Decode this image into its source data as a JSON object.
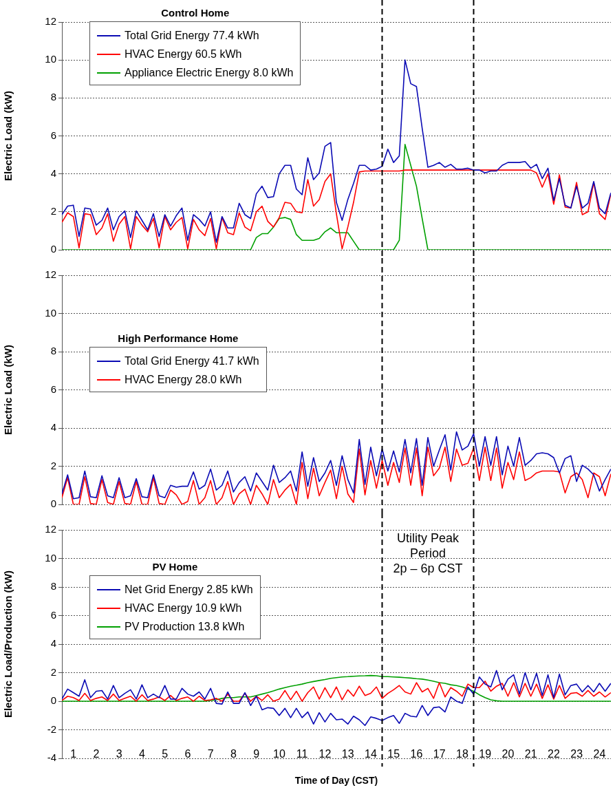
{
  "chart_data": [
    {
      "type": "line",
      "title": "Control Home",
      "ylabel": "Electric Load (kW)",
      "xlim": [
        0.5,
        24.5
      ],
      "xticks": [
        1,
        2,
        3,
        4,
        5,
        6,
        7,
        8,
        9,
        10,
        11,
        12,
        13,
        14,
        15,
        16,
        17,
        18,
        19,
        20,
        21,
        22,
        23,
        24
      ],
      "ylim": [
        0,
        12
      ],
      "yticks": [
        0,
        2,
        4,
        6,
        8,
        10,
        12
      ],
      "grid": "y",
      "legend": "top left",
      "tick_labels": "y",
      "marker": "none",
      "line_style": "solid",
      "x": [
        0.5,
        0.75,
        1,
        1.25,
        1.5,
        1.75,
        2,
        2.25,
        2.5,
        2.75,
        3,
        3.25,
        3.5,
        3.75,
        4,
        4.25,
        4.5,
        4.75,
        5,
        5.25,
        5.5,
        5.75,
        6,
        6.25,
        6.5,
        6.75,
        7,
        7.25,
        7.5,
        7.75,
        8,
        8.25,
        8.5,
        8.75,
        9,
        9.25,
        9.5,
        9.75,
        10,
        10.25,
        10.5,
        10.75,
        11,
        11.25,
        11.5,
        11.75,
        12,
        12.25,
        12.5,
        12.75,
        13,
        13.25,
        13.5,
        13.75,
        14,
        14.25,
        14.5,
        14.75,
        15,
        15.25,
        15.5,
        15.75,
        16,
        16.25,
        16.5,
        16.75,
        17,
        17.25,
        17.5,
        17.75,
        18,
        18.25,
        18.5,
        18.75,
        19,
        19.25,
        19.5,
        19.75,
        20,
        20.25,
        20.5,
        20.75,
        21,
        21.25,
        21.5,
        21.75,
        22,
        22.25,
        22.5,
        22.75,
        23,
        23.25,
        23.5,
        23.75,
        24,
        24.25,
        24.5
      ],
      "series": [
        {
          "name": "Total Grid Energy 77.4 kWh",
          "color": "#0a0ab4",
          "values": [
            1.85,
            2.3,
            2.35,
            0.7,
            2.2,
            2.15,
            1.3,
            1.55,
            2.2,
            1.05,
            1.75,
            2.05,
            0.65,
            2.05,
            1.55,
            1.05,
            1.9,
            0.7,
            1.85,
            1.25,
            1.8,
            2.2,
            0.5,
            1.85,
            1.6,
            1.25,
            2.0,
            0.4,
            1.75,
            1.15,
            1.15,
            2.45,
            1.85,
            1.65,
            2.95,
            3.35,
            2.75,
            2.8,
            4.0,
            4.45,
            4.45,
            3.2,
            2.9,
            4.85,
            3.7,
            4.05,
            5.45,
            5.65,
            2.5,
            1.55,
            2.65,
            3.5,
            4.45,
            4.45,
            4.2,
            4.25,
            4.4,
            5.3,
            4.6,
            4.95,
            10.0,
            8.75,
            8.6,
            6.4,
            4.35,
            4.45,
            4.6,
            4.35,
            4.5,
            4.25,
            4.25,
            4.3,
            4.2,
            4.2,
            4.05,
            4.15,
            4.15,
            4.45,
            4.6,
            4.6,
            4.6,
            4.65,
            4.3,
            4.5,
            3.75,
            4.3,
            2.6,
            3.75,
            2.35,
            2.2,
            3.35,
            2.2,
            2.45,
            3.6,
            2.2,
            1.9,
            3.0
          ]
        },
        {
          "name": "HVAC Energy 60.5 kWh",
          "color": "#ff0000",
          "values": [
            1.45,
            1.95,
            1.75,
            0.1,
            1.9,
            1.85,
            0.8,
            1.15,
            1.9,
            0.45,
            1.35,
            1.75,
            0.05,
            1.75,
            1.3,
            0.95,
            1.65,
            0.1,
            1.75,
            1.05,
            1.45,
            1.7,
            0.05,
            1.6,
            1.05,
            0.75,
            1.65,
            0.05,
            1.7,
            0.9,
            0.8,
            1.95,
            1.2,
            1.0,
            2.0,
            2.3,
            1.5,
            1.2,
            1.7,
            2.5,
            2.45,
            2.0,
            1.95,
            3.7,
            2.3,
            2.65,
            3.6,
            4.0,
            1.9,
            0.05,
            1.2,
            2.5,
            4.1,
            4.15,
            4.15,
            4.15,
            4.15,
            4.15,
            4.15,
            4.15,
            4.2,
            4.2,
            4.2,
            4.2,
            4.2,
            4.2,
            4.2,
            4.2,
            4.2,
            4.2,
            4.2,
            4.2,
            4.2,
            4.2,
            4.2,
            4.2,
            4.2,
            4.2,
            4.2,
            4.2,
            4.2,
            4.2,
            4.2,
            4.05,
            3.3,
            4.0,
            2.4,
            3.95,
            2.25,
            2.2,
            3.55,
            1.85,
            2.0,
            3.55,
            1.9,
            1.6,
            2.95
          ]
        },
        {
          "name": "Appliance Electric Energy 8.0 kWh",
          "color": "#00a000",
          "values": [
            0,
            0,
            0,
            0,
            0,
            0,
            0,
            0,
            0,
            0,
            0,
            0,
            0,
            0,
            0,
            0,
            0,
            0,
            0,
            0,
            0,
            0,
            0,
            0,
            0,
            0,
            0,
            0,
            0,
            0,
            0,
            0,
            0,
            0,
            0.65,
            0.85,
            0.85,
            1.2,
            1.65,
            1.7,
            1.6,
            0.8,
            0.5,
            0.5,
            0.5,
            0.6,
            0.95,
            1.15,
            0.9,
            0.9,
            0.9,
            0.45,
            0,
            0,
            0,
            0,
            0,
            0,
            0,
            0.5,
            5.55,
            4.45,
            3.35,
            1.65,
            0,
            0,
            0,
            0,
            0,
            0,
            0,
            0,
            0,
            0,
            0,
            0,
            0,
            0,
            0,
            0,
            0,
            0,
            0,
            0,
            0,
            0,
            0,
            0,
            0,
            0,
            0,
            0,
            0,
            0,
            0,
            0,
            0
          ]
        }
      ],
      "ref_lines": [
        {
          "axis": "x",
          "value": 14.5,
          "color": "#000000",
          "line_style": "dashed"
        },
        {
          "axis": "x",
          "value": 18.5,
          "color": "#000000",
          "line_style": "dashed"
        }
      ]
    },
    {
      "type": "line",
      "title": "High Performance Home",
      "ylabel": "Electric Load (kW)",
      "xlim": [
        0.5,
        24.5
      ],
      "xticks": [
        1,
        2,
        3,
        4,
        5,
        6,
        7,
        8,
        9,
        10,
        11,
        12,
        13,
        14,
        15,
        16,
        17,
        18,
        19,
        20,
        21,
        22,
        23,
        24
      ],
      "ylim": [
        0,
        12
      ],
      "yticks": [
        0,
        2,
        4,
        6,
        8,
        10,
        12
      ],
      "grid": "y",
      "legend": "top left",
      "tick_labels": "y",
      "marker": "none",
      "line_style": "solid",
      "x": [
        0.5,
        0.75,
        1,
        1.25,
        1.5,
        1.75,
        2,
        2.25,
        2.5,
        2.75,
        3,
        3.25,
        3.5,
        3.75,
        4,
        4.25,
        4.5,
        4.75,
        5,
        5.25,
        5.5,
        5.75,
        6,
        6.25,
        6.5,
        6.75,
        7,
        7.25,
        7.5,
        7.75,
        8,
        8.25,
        8.5,
        8.75,
        9,
        9.25,
        9.5,
        9.75,
        10,
        10.25,
        10.5,
        10.75,
        11,
        11.25,
        11.5,
        11.75,
        12,
        12.25,
        12.5,
        12.75,
        13,
        13.25,
        13.5,
        13.75,
        14,
        14.25,
        14.5,
        14.75,
        15,
        15.25,
        15.5,
        15.75,
        16,
        16.25,
        16.5,
        16.75,
        17,
        17.25,
        17.5,
        17.75,
        18,
        18.25,
        18.5,
        18.75,
        19,
        19.25,
        19.5,
        19.75,
        20,
        20.25,
        20.5,
        20.75,
        21,
        21.25,
        21.5,
        21.75,
        22,
        22.25,
        22.5,
        22.75,
        23,
        23.25,
        23.5,
        23.75,
        24,
        24.25,
        24.5
      ],
      "series": [
        {
          "name": "Total Grid Energy 41.7 kWh",
          "color": "#0a0ab4",
          "values": [
            0.55,
            1.55,
            0.3,
            0.35,
            1.75,
            0.4,
            0.35,
            1.5,
            0.45,
            0.35,
            1.4,
            0.35,
            0.45,
            1.35,
            0.4,
            0.35,
            1.55,
            0.45,
            0.35,
            1.0,
            0.9,
            0.95,
            0.95,
            1.7,
            0.8,
            1.0,
            1.85,
            0.75,
            1.0,
            1.75,
            0.65,
            1.15,
            1.45,
            0.7,
            1.65,
            1.2,
            0.75,
            2.05,
            1.15,
            1.4,
            1.75,
            0.7,
            2.75,
            0.95,
            2.45,
            1.2,
            1.65,
            2.3,
            1.0,
            2.55,
            1.3,
            0.6,
            3.4,
            1.05,
            3.0,
            1.5,
            2.9,
            1.75,
            2.8,
            1.7,
            3.4,
            1.65,
            3.45,
            1.0,
            3.5,
            2.0,
            2.85,
            3.65,
            1.8,
            3.8,
            2.85,
            3.05,
            3.7,
            2.0,
            3.55,
            2.05,
            3.55,
            1.55,
            3.05,
            2.0,
            3.5,
            2.05,
            2.3,
            2.65,
            2.7,
            2.65,
            2.45,
            1.65,
            2.4,
            2.55,
            1.2,
            2.05,
            1.85,
            1.55,
            0.7,
            1.3,
            1.85
          ]
        },
        {
          "name": "HVAC Energy 28.0 kWh",
          "color": "#ff0000",
          "values": [
            0.35,
            1.4,
            0.0,
            0.0,
            1.45,
            0.05,
            0.0,
            1.3,
            0.1,
            0.0,
            1.2,
            0.05,
            0.0,
            1.2,
            0.0,
            0.0,
            1.4,
            0.05,
            0.0,
            0.75,
            0.5,
            0.0,
            0.15,
            1.25,
            0.0,
            0.35,
            1.25,
            0.0,
            0.35,
            1.2,
            0.0,
            0.55,
            0.8,
            0.0,
            1.0,
            0.55,
            0.0,
            1.3,
            0.35,
            0.75,
            1.05,
            0.0,
            2.2,
            0.3,
            1.9,
            0.45,
            1.15,
            1.8,
            0.3,
            2.0,
            0.55,
            0.1,
            2.9,
            0.5,
            2.3,
            0.85,
            2.3,
            1.0,
            2.2,
            1.15,
            2.95,
            1.0,
            2.95,
            0.45,
            3.0,
            1.5,
            1.9,
            3.0,
            1.2,
            2.9,
            2.05,
            2.15,
            2.95,
            1.25,
            3.0,
            1.25,
            2.95,
            0.85,
            2.2,
            1.3,
            2.75,
            1.25,
            1.4,
            1.65,
            1.75,
            1.75,
            1.75,
            1.7,
            0.6,
            1.45,
            1.65,
            1.3,
            0.35,
            1.65,
            1.45,
            0.45,
            1.6
          ]
        }
      ],
      "ref_lines": [
        {
          "axis": "x",
          "value": 14.5,
          "color": "#000000",
          "line_style": "dashed"
        },
        {
          "axis": "x",
          "value": 18.5,
          "color": "#000000",
          "line_style": "dashed"
        }
      ]
    },
    {
      "type": "line",
      "title": "PV Home",
      "ylabel": "Electric Load/Production (kW)",
      "xlabel": "Time of Day (CST)",
      "xlim": [
        0.5,
        24.5
      ],
      "xticks": [
        1,
        2,
        3,
        4,
        5,
        6,
        7,
        8,
        9,
        10,
        11,
        12,
        13,
        14,
        15,
        16,
        17,
        18,
        19,
        20,
        21,
        22,
        23,
        24
      ],
      "ylim": [
        -4,
        12
      ],
      "yticks": [
        -4,
        -2,
        0,
        2,
        4,
        6,
        8,
        10,
        12
      ],
      "grid": "y",
      "legend": "top left",
      "marker": "none",
      "line_style": "solid",
      "x": [
        0.5,
        0.75,
        1,
        1.25,
        1.5,
        1.75,
        2,
        2.25,
        2.5,
        2.75,
        3,
        3.25,
        3.5,
        3.75,
        4,
        4.25,
        4.5,
        4.75,
        5,
        5.25,
        5.5,
        5.75,
        6,
        6.25,
        6.5,
        6.75,
        7,
        7.25,
        7.5,
        7.75,
        8,
        8.25,
        8.5,
        8.75,
        9,
        9.25,
        9.5,
        9.75,
        10,
        10.25,
        10.5,
        10.75,
        11,
        11.25,
        11.5,
        11.75,
        12,
        12.25,
        12.5,
        12.75,
        13,
        13.25,
        13.5,
        13.75,
        14,
        14.25,
        14.5,
        14.75,
        15,
        15.25,
        15.5,
        15.75,
        16,
        16.25,
        16.5,
        16.75,
        17,
        17.25,
        17.5,
        17.75,
        18,
        18.25,
        18.5,
        18.75,
        19,
        19.25,
        19.5,
        19.75,
        20,
        20.25,
        20.5,
        20.75,
        21,
        21.25,
        21.5,
        21.75,
        22,
        22.25,
        22.5,
        22.75,
        23,
        23.25,
        23.5,
        23.75,
        24,
        24.25,
        24.5
      ],
      "series": [
        {
          "name": "Net Grid Energy 2.85 kWh",
          "color": "#0a0ab4",
          "values": [
            0.15,
            0.85,
            0.6,
            0.35,
            1.5,
            0.25,
            0.7,
            0.75,
            0.15,
            1.1,
            0.25,
            0.55,
            0.8,
            0.15,
            1.15,
            0.25,
            0.5,
            0.25,
            1.1,
            0.15,
            0.15,
            0.9,
            0.5,
            0.35,
            0.65,
            0.15,
            0.9,
            -0.15,
            -0.2,
            0.65,
            -0.15,
            -0.15,
            0.6,
            -0.3,
            0.35,
            -0.6,
            -0.45,
            -0.5,
            -1.0,
            -0.5,
            -1.15,
            -0.5,
            -1.15,
            -0.75,
            -1.6,
            -0.8,
            -1.45,
            -0.85,
            -1.3,
            -1.25,
            -1.6,
            -1.05,
            -1.3,
            -1.7,
            -1.1,
            -1.2,
            -1.35,
            -1.15,
            -1.0,
            -1.55,
            -0.85,
            -1.05,
            -1.1,
            -0.3,
            -1.0,
            -0.45,
            -0.4,
            -0.75,
            0.3,
            0.0,
            -0.15,
            1.0,
            0.5,
            1.7,
            1.2,
            1.0,
            2.15,
            0.8,
            1.55,
            1.85,
            0.5,
            2.0,
            0.8,
            1.95,
            0.4,
            1.85,
            0.25,
            1.9,
            0.45,
            1.1,
            1.2,
            0.65,
            1.1,
            0.65,
            1.25,
            0.7,
            1.25
          ]
        },
        {
          "name": "HVAC Energy 10.9 kWh",
          "color": "#ff0000",
          "values": [
            0.05,
            0.35,
            0.25,
            0.05,
            0.55,
            0.05,
            0.2,
            0.3,
            0.05,
            0.5,
            0.05,
            0.2,
            0.35,
            0.0,
            0.45,
            0.05,
            0.15,
            0.3,
            0.05,
            0.4,
            0.05,
            0.2,
            0.3,
            0.0,
            0.35,
            0.05,
            0.1,
            0.2,
            0.0,
            0.5,
            0.0,
            0.0,
            0.55,
            0.0,
            0.35,
            0.05,
            0.45,
            0.0,
            0.15,
            0.75,
            0.1,
            0.7,
            0.0,
            0.6,
            1.0,
            0.15,
            0.95,
            0.25,
            1.0,
            0.1,
            0.8,
            0.35,
            1.05,
            0.4,
            0.55,
            1.0,
            0.2,
            0.55,
            0.8,
            1.1,
            0.65,
            0.5,
            1.3,
            0.65,
            0.9,
            0.2,
            1.3,
            0.3,
            0.95,
            0.7,
            0.35,
            1.2,
            0.95,
            0.95,
            1.4,
            0.7,
            1.05,
            1.25,
            0.35,
            1.3,
            0.3,
            1.25,
            0.35,
            1.2,
            0.2,
            1.15,
            0.15,
            1.1,
            0.2,
            0.55,
            0.6,
            0.35,
            0.75,
            0.35,
            0.65,
            0.3,
            0.6
          ]
        },
        {
          "name": "PV Production 13.8 kWh",
          "color": "#00a000",
          "values": [
            0,
            0,
            0,
            0,
            0,
            0,
            0,
            0,
            0,
            0,
            0,
            0,
            0,
            0,
            0,
            0,
            0,
            0,
            0,
            0,
            0,
            0,
            0,
            0,
            0,
            0,
            0.05,
            0.1,
            0.2,
            0.25,
            0.25,
            0.3,
            0.3,
            0.3,
            0.4,
            0.5,
            0.6,
            0.72,
            0.85,
            0.95,
            1.05,
            1.12,
            1.2,
            1.3,
            1.38,
            1.45,
            1.52,
            1.6,
            1.65,
            1.7,
            1.72,
            1.75,
            1.77,
            1.78,
            1.8,
            1.78,
            1.72,
            1.72,
            1.7,
            1.68,
            1.65,
            1.62,
            1.58,
            1.55,
            1.48,
            1.4,
            1.3,
            1.25,
            1.15,
            1.1,
            1.0,
            0.85,
            0.7,
            0.45,
            0.25,
            0.1,
            0.03,
            0,
            0,
            0,
            0,
            0,
            0,
            0,
            0,
            0,
            0,
            0,
            0,
            0,
            0,
            0,
            0,
            0,
            0,
            0,
            0
          ]
        }
      ],
      "ref_lines": [
        {
          "axis": "x",
          "value": 14.5,
          "color": "#000000",
          "line_style": "dashed"
        },
        {
          "axis": "x",
          "value": 18.5,
          "color": "#000000",
          "line_style": "dashed"
        }
      ],
      "annotations": [
        "Utility Peak\nPeriod\n2p – 6p CST"
      ]
    }
  ]
}
